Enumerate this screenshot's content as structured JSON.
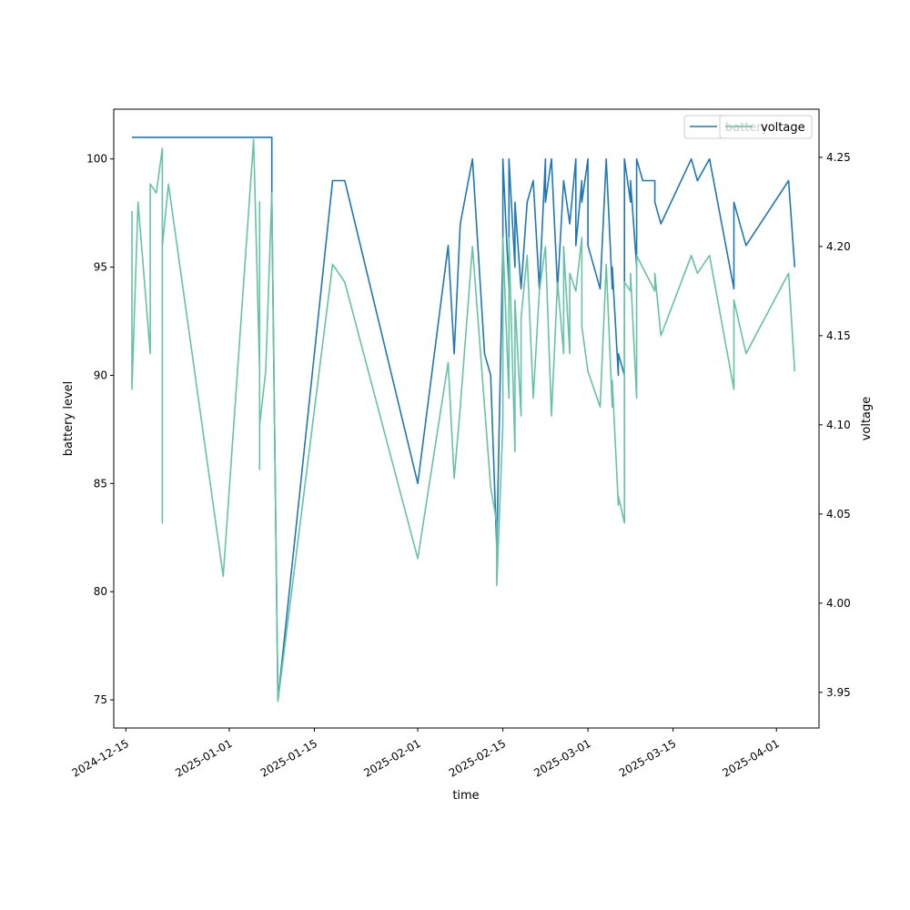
{
  "chart_data": {
    "type": "line",
    "xlabel": "time",
    "ylabel": "battery level",
    "y2label": "voltage",
    "xlim": [
      "2024-12-13",
      "2025-04-08"
    ],
    "ylim": [
      73.7,
      102.3
    ],
    "y2lim": [
      3.93,
      4.277
    ],
    "x_ticks": [
      "2024-12-15",
      "2025-01-01",
      "2025-01-15",
      "2025-02-01",
      "2025-02-15",
      "2025-03-01",
      "2025-03-15",
      "2025-04-01"
    ],
    "y_ticks": [
      75,
      80,
      85,
      90,
      95,
      100
    ],
    "y2_ticks": [
      "3.95",
      "4.00",
      "4.05",
      "4.10",
      "4.15",
      "4.20",
      "4.25"
    ],
    "grid": false,
    "legend_placement": "top-right",
    "series": [
      {
        "name": "battery",
        "axis": "left",
        "color": "#1f77b4",
        "points": [
          [
            "2024-12-16",
            101
          ],
          [
            "2025-01-08",
            101
          ],
          [
            "2025-01-08",
            98
          ],
          [
            "2025-01-09",
            75
          ],
          [
            "2025-01-18",
            99
          ],
          [
            "2025-01-20",
            99
          ],
          [
            "2025-02-01",
            85
          ],
          [
            "2025-02-06",
            96
          ],
          [
            "2025-02-07",
            91
          ],
          [
            "2025-02-08",
            97
          ],
          [
            "2025-02-10",
            100
          ],
          [
            "2025-02-12",
            91
          ],
          [
            "2025-02-13",
            90
          ],
          [
            "2025-02-14",
            82
          ],
          [
            "2025-02-15",
            96
          ],
          [
            "2025-02-15",
            100
          ],
          [
            "2025-02-16",
            94
          ],
          [
            "2025-02-16",
            100
          ],
          [
            "2025-02-17",
            95
          ],
          [
            "2025-02-17",
            98
          ],
          [
            "2025-02-18",
            94
          ],
          [
            "2025-02-19",
            98
          ],
          [
            "2025-02-20",
            99
          ],
          [
            "2025-02-21",
            94
          ],
          [
            "2025-02-22",
            100
          ],
          [
            "2025-02-22",
            98
          ],
          [
            "2025-02-23",
            100
          ],
          [
            "2025-02-24",
            94
          ],
          [
            "2025-02-25",
            99
          ],
          [
            "2025-02-26",
            97
          ],
          [
            "2025-02-27",
            100
          ],
          [
            "2025-02-27",
            96
          ],
          [
            "2025-02-28",
            99
          ],
          [
            "2025-02-28",
            98
          ],
          [
            "2025-03-01",
            100
          ],
          [
            "2025-03-01",
            96
          ],
          [
            "2025-03-03",
            94
          ],
          [
            "2025-03-04",
            100
          ],
          [
            "2025-03-05",
            94
          ],
          [
            "2025-03-05",
            95
          ],
          [
            "2025-03-06",
            90
          ],
          [
            "2025-03-06",
            91
          ],
          [
            "2025-03-07",
            90
          ],
          [
            "2025-03-07",
            100
          ],
          [
            "2025-03-08",
            98
          ],
          [
            "2025-03-08",
            99
          ],
          [
            "2025-03-09",
            95
          ],
          [
            "2025-03-09",
            100
          ],
          [
            "2025-03-10",
            99
          ],
          [
            "2025-03-12",
            99
          ],
          [
            "2025-03-12",
            98
          ],
          [
            "2025-03-13",
            97
          ],
          [
            "2025-03-18",
            100
          ],
          [
            "2025-03-19",
            99
          ],
          [
            "2025-03-21",
            100
          ],
          [
            "2025-03-25",
            94
          ],
          [
            "2025-03-25",
            98
          ],
          [
            "2025-03-27",
            96
          ],
          [
            "2025-04-03",
            99
          ],
          [
            "2025-04-04",
            95
          ]
        ]
      },
      {
        "name": "voltage",
        "axis": "right",
        "color": "#66c2a5",
        "points": [
          [
            "2024-12-16",
            4.22
          ],
          [
            "2024-12-16",
            4.12
          ],
          [
            "2024-12-17",
            4.225
          ],
          [
            "2024-12-19",
            4.14
          ],
          [
            "2024-12-19",
            4.235
          ],
          [
            "2024-12-20",
            4.23
          ],
          [
            "2024-12-21",
            4.255
          ],
          [
            "2024-12-21",
            4.045
          ],
          [
            "2024-12-21",
            4.24
          ],
          [
            "2024-12-21",
            4.2
          ],
          [
            "2024-12-22",
            4.235
          ],
          [
            "2024-12-31",
            4.015
          ],
          [
            "2025-01-05",
            4.26
          ],
          [
            "2025-01-06",
            4.13
          ],
          [
            "2025-01-06",
            4.225
          ],
          [
            "2025-01-06",
            4.075
          ],
          [
            "2025-01-06",
            4.1
          ],
          [
            "2025-01-07",
            4.13
          ],
          [
            "2025-01-08",
            4.23
          ],
          [
            "2025-01-09",
            3.945
          ],
          [
            "2025-01-18",
            4.19
          ],
          [
            "2025-01-20",
            4.18
          ],
          [
            "2025-02-01",
            4.025
          ],
          [
            "2025-02-06",
            4.135
          ],
          [
            "2025-02-07",
            4.07
          ],
          [
            "2025-02-08",
            4.11
          ],
          [
            "2025-02-10",
            4.2
          ],
          [
            "2025-02-13",
            4.065
          ],
          [
            "2025-02-14",
            4.045
          ],
          [
            "2025-02-14",
            4.01
          ],
          [
            "2025-02-15",
            4.1
          ],
          [
            "2025-02-15",
            4.205
          ],
          [
            "2025-02-16",
            4.115
          ],
          [
            "2025-02-16",
            4.205
          ],
          [
            "2025-02-17",
            4.085
          ],
          [
            "2025-02-17",
            4.17
          ],
          [
            "2025-02-18",
            4.105
          ],
          [
            "2025-02-18",
            4.16
          ],
          [
            "2025-02-19",
            4.195
          ],
          [
            "2025-02-20",
            4.115
          ],
          [
            "2025-02-21",
            4.175
          ],
          [
            "2025-02-22",
            4.2
          ],
          [
            "2025-02-23",
            4.105
          ],
          [
            "2025-02-24",
            4.18
          ],
          [
            "2025-02-25",
            4.14
          ],
          [
            "2025-02-25",
            4.2
          ],
          [
            "2025-02-26",
            4.14
          ],
          [
            "2025-02-26",
            4.185
          ],
          [
            "2025-02-27",
            4.175
          ],
          [
            "2025-02-28",
            4.205
          ],
          [
            "2025-02-28",
            4.155
          ],
          [
            "2025-03-01",
            4.13
          ],
          [
            "2025-03-03",
            4.11
          ],
          [
            "2025-03-04",
            4.19
          ],
          [
            "2025-03-05",
            4.11
          ],
          [
            "2025-03-05",
            4.125
          ],
          [
            "2025-03-06",
            4.055
          ],
          [
            "2025-03-06",
            4.06
          ],
          [
            "2025-03-07",
            4.045
          ],
          [
            "2025-03-07",
            4.18
          ],
          [
            "2025-03-08",
            4.175
          ],
          [
            "2025-03-08",
            4.185
          ],
          [
            "2025-03-09",
            4.115
          ],
          [
            "2025-03-09",
            4.195
          ],
          [
            "2025-03-12",
            4.175
          ],
          [
            "2025-03-12",
            4.185
          ],
          [
            "2025-03-13",
            4.15
          ],
          [
            "2025-03-18",
            4.195
          ],
          [
            "2025-03-19",
            4.185
          ],
          [
            "2025-03-21",
            4.195
          ],
          [
            "2025-03-25",
            4.12
          ],
          [
            "2025-03-25",
            4.17
          ],
          [
            "2025-03-27",
            4.14
          ],
          [
            "2025-04-03",
            4.185
          ],
          [
            "2025-04-04",
            4.13
          ]
        ]
      }
    ]
  }
}
